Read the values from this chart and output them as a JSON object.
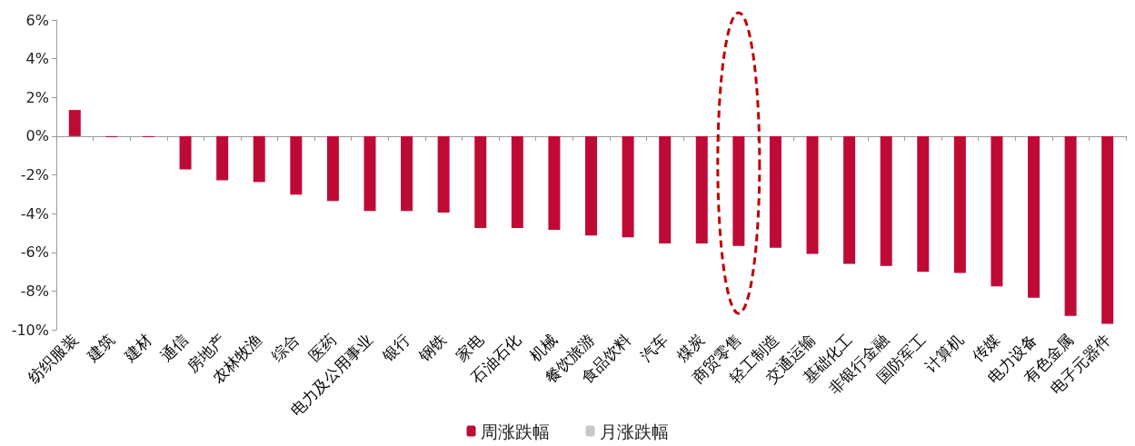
{
  "chart_data": {
    "type": "bar",
    "categories": [
      "纺织服装",
      "建筑",
      "建材",
      "通信",
      "房地产",
      "农林牧渔",
      "综合",
      "医药",
      "电力及公用事业",
      "银行",
      "钢铁",
      "家电",
      "石油石化",
      "机械",
      "餐饮旅游",
      "食品饮料",
      "汽车",
      "煤炭",
      "商贸零售",
      "轻工制造",
      "交通运输",
      "基础化工",
      "非银行金融",
      "国防军工",
      "计算机",
      "传媒",
      "电力设备",
      "有色金属",
      "电子元器件"
    ],
    "series": [
      {
        "name": "周涨跌幅",
        "color": "#c00a36",
        "values": [
          1.35,
          -0.05,
          -0.05,
          -1.72,
          -2.28,
          -2.37,
          -3.02,
          -3.35,
          -3.86,
          -3.86,
          -3.95,
          -4.74,
          -4.74,
          -4.84,
          -5.13,
          -5.23,
          -5.54,
          -5.54,
          -5.67,
          -5.77,
          -6.08,
          -6.6,
          -6.7,
          -7.01,
          -7.07,
          -7.76,
          -8.35,
          -9.28,
          -9.69
        ]
      },
      {
        "name": "月涨跌幅",
        "color": "#c8c8c8",
        "values": [
          null,
          null,
          null,
          null,
          null,
          null,
          null,
          null,
          null,
          null,
          null,
          null,
          null,
          null,
          null,
          null,
          null,
          null,
          null,
          null,
          null,
          null,
          null,
          null,
          null,
          null,
          null,
          null,
          null
        ]
      }
    ],
    "ylim": [
      -10,
      6
    ],
    "yticks": [
      {
        "value": -10,
        "label": "-10%"
      },
      {
        "value": -8,
        "label": "-8%"
      },
      {
        "value": -6,
        "label": "-6%"
      },
      {
        "value": -4,
        "label": "-4%"
      },
      {
        "value": -2,
        "label": "-2%"
      },
      {
        "value": 0,
        "label": "0%"
      },
      {
        "value": 2,
        "label": "2%"
      },
      {
        "value": 4,
        "label": "4%"
      },
      {
        "value": 6,
        "label": "6%"
      }
    ],
    "legend": "bottom"
  }
}
